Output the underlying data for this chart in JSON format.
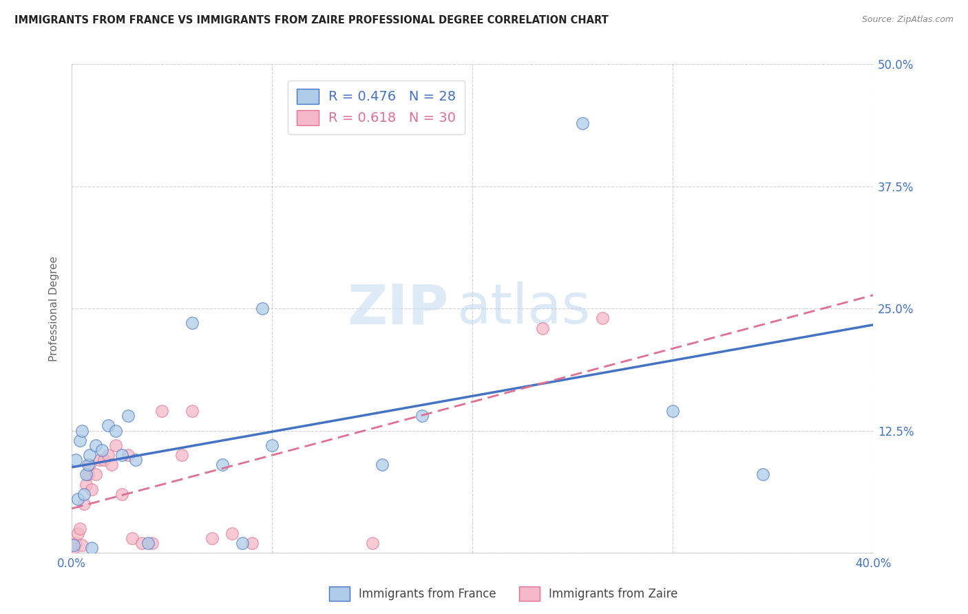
{
  "title": "IMMIGRANTS FROM FRANCE VS IMMIGRANTS FROM ZAIRE PROFESSIONAL DEGREE CORRELATION CHART",
  "source": "Source: ZipAtlas.com",
  "ylabel": "Professional Degree",
  "xlim": [
    0,
    0.4
  ],
  "ylim": [
    0,
    0.5
  ],
  "france_color": "#aecce8",
  "france_line_color": "#4472c4",
  "zaire_color": "#f4b8c8",
  "zaire_line_color": "#e07090",
  "france_R": 0.476,
  "france_N": 28,
  "zaire_R": 0.618,
  "zaire_N": 30,
  "legend_label_france": "Immigrants from France",
  "legend_label_zaire": "Immigrants from Zaire",
  "france_x": [
    0.001,
    0.002,
    0.003,
    0.004,
    0.005,
    0.006,
    0.007,
    0.008,
    0.009,
    0.01,
    0.012,
    0.015,
    0.018,
    0.022,
    0.025,
    0.028,
    0.032,
    0.038,
    0.06,
    0.075,
    0.085,
    0.095,
    0.1,
    0.155,
    0.175,
    0.255,
    0.3,
    0.345
  ],
  "france_y": [
    0.008,
    0.095,
    0.055,
    0.115,
    0.125,
    0.06,
    0.08,
    0.09,
    0.1,
    0.005,
    0.11,
    0.105,
    0.13,
    0.125,
    0.1,
    0.14,
    0.095,
    0.01,
    0.235,
    0.09,
    0.01,
    0.25,
    0.11,
    0.09,
    0.14,
    0.44,
    0.145,
    0.08
  ],
  "zaire_x": [
    0.001,
    0.002,
    0.003,
    0.004,
    0.005,
    0.006,
    0.007,
    0.008,
    0.009,
    0.01,
    0.012,
    0.014,
    0.016,
    0.018,
    0.02,
    0.022,
    0.025,
    0.028,
    0.03,
    0.035,
    0.04,
    0.045,
    0.055,
    0.06,
    0.07,
    0.08,
    0.09,
    0.15,
    0.235,
    0.265
  ],
  "zaire_y": [
    0.005,
    0.01,
    0.02,
    0.025,
    0.008,
    0.05,
    0.07,
    0.08,
    0.09,
    0.065,
    0.08,
    0.095,
    0.095,
    0.1,
    0.09,
    0.11,
    0.06,
    0.1,
    0.015,
    0.01,
    0.01,
    0.145,
    0.1,
    0.145,
    0.015,
    0.02,
    0.01,
    0.01,
    0.23,
    0.24
  ],
  "watermark_zip": "ZIP",
  "watermark_atlas": "atlas",
  "background_color": "#ffffff",
  "grid_color": "#cccccc",
  "title_color": "#222222",
  "source_color": "#888888",
  "tick_color": "#4472c4",
  "ylabel_color": "#666666"
}
